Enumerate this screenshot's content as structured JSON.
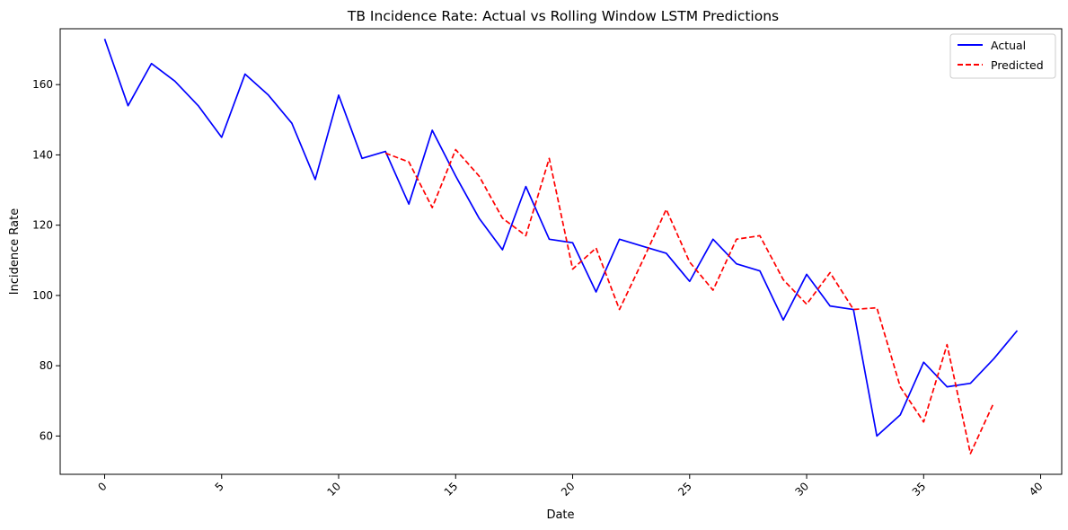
{
  "chart_data": {
    "type": "line",
    "title": "TB Incidence Rate: Actual vs Rolling Window LSTM Predictions",
    "xlabel": "Date",
    "ylabel": "Incidence Rate",
    "xlim": [
      -1.9,
      40.9
    ],
    "ylim": [
      49.1,
      175.9
    ],
    "x_ticks": [
      0,
      5,
      10,
      15,
      20,
      25,
      30,
      35,
      40
    ],
    "y_ticks": [
      60,
      80,
      100,
      120,
      140,
      160
    ],
    "x_tick_rotation": 45,
    "grid": false,
    "legend_position": "top-right",
    "series": [
      {
        "name": "Actual",
        "color": "#0000ff",
        "style": "solid",
        "x": [
          0,
          1,
          2,
          3,
          4,
          5,
          6,
          7,
          8,
          9,
          10,
          11,
          12,
          13,
          14,
          15,
          16,
          17,
          18,
          19,
          20,
          21,
          22,
          23,
          24,
          25,
          26,
          27,
          28,
          29,
          30,
          31,
          32,
          33,
          34,
          35,
          36,
          37,
          38,
          39
        ],
        "values": [
          173,
          154,
          166,
          161,
          154,
          145,
          163,
          157,
          149,
          133,
          157,
          139,
          141,
          126,
          147,
          134,
          122,
          113,
          131,
          116,
          115,
          101,
          116,
          114,
          112,
          104,
          116,
          109,
          107,
          93,
          106,
          97,
          96,
          60,
          66,
          81,
          74,
          75,
          82,
          90
        ]
      },
      {
        "name": "Predicted",
        "color": "#ff0000",
        "style": "dashed",
        "x": [
          12,
          13,
          14,
          15,
          16,
          17,
          18,
          19,
          20,
          21,
          22,
          23,
          24,
          25,
          26,
          27,
          28,
          29,
          30,
          31,
          32,
          33,
          34,
          35,
          36,
          37,
          38
        ],
        "values": [
          140.5,
          138,
          125,
          141.5,
          134,
          122,
          117,
          139,
          107.5,
          113.5,
          96,
          110,
          124.5,
          109.5,
          101.5,
          116,
          117,
          104.5,
          97.5,
          106.5,
          96,
          96.5,
          74,
          64,
          86,
          55,
          69.5
        ]
      }
    ]
  }
}
